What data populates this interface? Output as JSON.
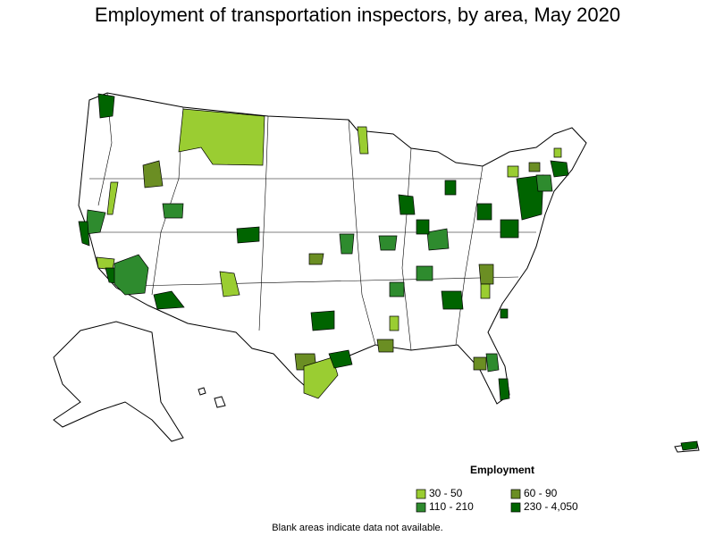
{
  "title": "Employment of transportation inspectors, by area, May 2020",
  "legend": {
    "title": "Employment",
    "items": [
      {
        "label": "30 - 50",
        "color": "#9acd32"
      },
      {
        "label": "60 - 90",
        "color": "#6b8e23"
      },
      {
        "label": "110 - 210",
        "color": "#2e8b2e"
      },
      {
        "label": "230 - 4,050",
        "color": "#006400"
      }
    ]
  },
  "note": "Blank areas indicate data not available."
}
